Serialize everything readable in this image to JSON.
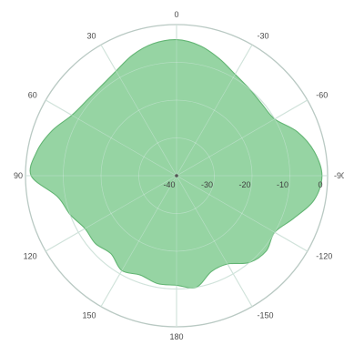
{
  "chart_data": {
    "type": "polar-area",
    "title": "",
    "colors": {
      "fill": "#7fca8f",
      "stroke": "#63b574",
      "grid": "#cbdad5",
      "outer": "#b9c9c3"
    },
    "angle_direction": "clockwise",
    "angle_zero_at": "top",
    "angle_ticks": [
      0,
      -30,
      -60,
      -90,
      -120,
      -150,
      180,
      150,
      120,
      90,
      60,
      30
    ],
    "angle_tick_labels": [
      "0",
      "-30",
      "-60",
      "-90",
      "-120",
      "-150",
      "180",
      "150",
      "120",
      "90",
      "60",
      "30"
    ],
    "radial_ticks": [
      -40,
      -30,
      -20,
      -10,
      0
    ],
    "radial_tick_labels": [
      "-40",
      "-30",
      "-20",
      "-10",
      "0"
    ],
    "rlim": [
      -40,
      0
    ],
    "grid": true,
    "series": [
      {
        "angles": [
          0,
          -10,
          -20,
          -30,
          -40,
          -50,
          -60,
          -70,
          -80,
          -90,
          -100,
          -110,
          -120,
          -130,
          -140,
          -150,
          -160,
          -170,
          180,
          170,
          160,
          150,
          140,
          130,
          120,
          110,
          100,
          90,
          80,
          70,
          60,
          50,
          40,
          30,
          20,
          10
        ],
        "values": [
          -4,
          -5,
          -7,
          -9,
          -10,
          -10.5,
          -10,
          -6,
          -3,
          -1.5,
          -3,
          -7,
          -10,
          -9,
          -10,
          -13,
          -13,
          -10,
          -11,
          -11,
          -12,
          -11,
          -13,
          -12,
          -12,
          -10,
          -8,
          -1.5,
          -2.5,
          -5,
          -8,
          -9,
          -9,
          -8,
          -6,
          -4.5
        ]
      }
    ]
  }
}
